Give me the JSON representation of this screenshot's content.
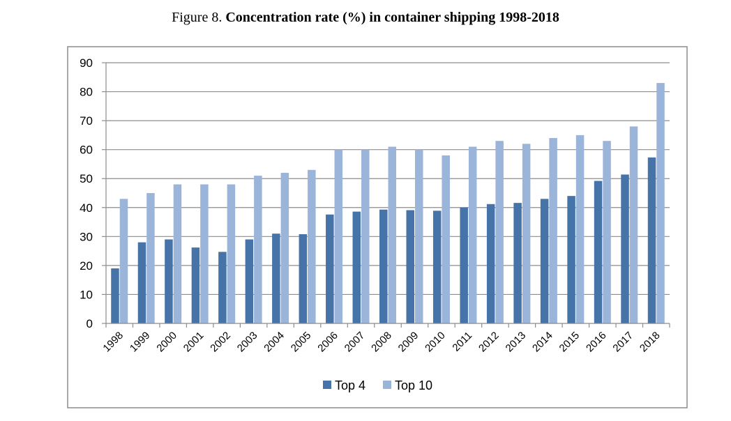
{
  "figure": {
    "label": "Figure 8.",
    "title": "Concentration rate (%) in container shipping 1998-2018"
  },
  "chart_data": {
    "type": "bar",
    "title": "Concentration rate (%) in container shipping 1998-2018",
    "xlabel": "",
    "ylabel": "",
    "ylim": [
      0,
      90
    ],
    "yticks": [
      0,
      10,
      20,
      30,
      40,
      50,
      60,
      70,
      80,
      90
    ],
    "grid": true,
    "legend_position": "bottom",
    "categories": [
      "1998",
      "1999",
      "2000",
      "2001",
      "2002",
      "2003",
      "2004",
      "2005",
      "2006",
      "2007",
      "2008",
      "2009",
      "2010",
      "2011",
      "2012",
      "2013",
      "2014",
      "2015",
      "2016",
      "2017",
      "2018"
    ],
    "series": [
      {
        "name": "Top 4",
        "color": "#4673a8",
        "values": [
          19,
          28,
          29,
          26.2,
          24.7,
          29,
          31,
          30.8,
          37.6,
          38.6,
          39.3,
          39.1,
          38.9,
          40,
          41.2,
          41.6,
          43,
          44,
          49.2,
          51.4,
          57.3
        ]
      },
      {
        "name": "Top 10",
        "color": "#9bb4d9",
        "values": [
          43,
          45,
          48,
          48,
          48,
          51,
          52,
          53,
          60,
          60,
          61,
          60,
          58,
          61,
          63,
          62,
          64,
          65,
          63,
          68,
          83
        ]
      }
    ]
  }
}
